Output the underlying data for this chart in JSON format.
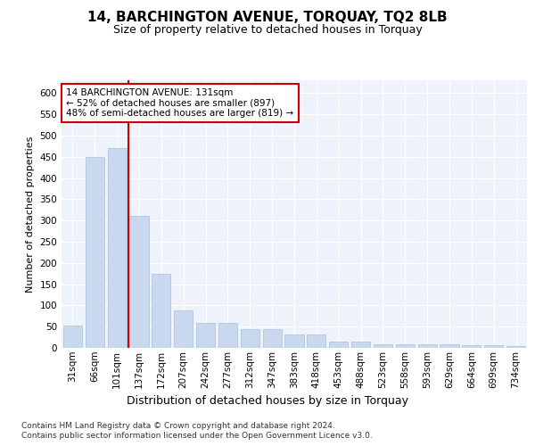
{
  "title1": "14, BARCHINGTON AVENUE, TORQUAY, TQ2 8LB",
  "title2": "Size of property relative to detached houses in Torquay",
  "xlabel": "Distribution of detached houses by size in Torquay",
  "ylabel": "Number of detached properties",
  "categories": [
    "31sqm",
    "66sqm",
    "101sqm",
    "137sqm",
    "172sqm",
    "207sqm",
    "242sqm",
    "277sqm",
    "312sqm",
    "347sqm",
    "383sqm",
    "418sqm",
    "453sqm",
    "488sqm",
    "523sqm",
    "558sqm",
    "593sqm",
    "629sqm",
    "664sqm",
    "699sqm",
    "734sqm"
  ],
  "values": [
    53,
    450,
    470,
    310,
    175,
    88,
    58,
    58,
    44,
    44,
    32,
    32,
    15,
    15,
    8,
    8,
    8,
    8,
    6,
    6,
    4
  ],
  "bar_color": "#c8d8ee",
  "bar_edge_color": "#a8c0dc",
  "highlight_line_color": "#cc0000",
  "annotation_text": "14 BARCHINGTON AVENUE: 131sqm\n← 52% of detached houses are smaller (897)\n48% of semi-detached houses are larger (819) →",
  "annotation_box_color": "#cc0000",
  "background_color": "#eef2fa",
  "ylim": [
    0,
    630
  ],
  "yticks": [
    0,
    50,
    100,
    150,
    200,
    250,
    300,
    350,
    400,
    450,
    500,
    550,
    600
  ],
  "footer1": "Contains HM Land Registry data © Crown copyright and database right 2024.",
  "footer2": "Contains public sector information licensed under the Open Government Licence v3.0.",
  "title1_fontsize": 11,
  "title2_fontsize": 9,
  "xlabel_fontsize": 9,
  "ylabel_fontsize": 8,
  "tick_fontsize": 7.5,
  "annotation_fontsize": 7.5,
  "footer_fontsize": 6.5
}
